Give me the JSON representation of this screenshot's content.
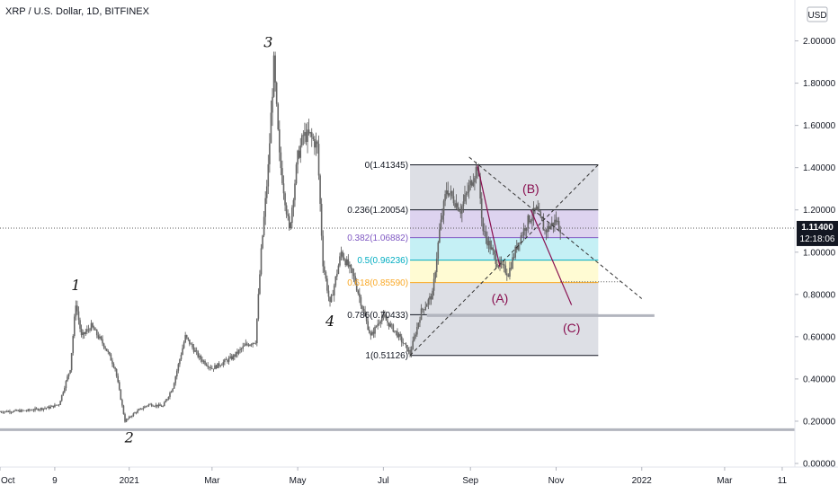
{
  "header": {
    "title": "XRP / U.S. Dollar, 1D, BITFINEX",
    "currency_button": "USD"
  },
  "price_tag": {
    "value": "1.11400",
    "countdown": "12:18:06"
  },
  "chart_data": {
    "type": "candlestick",
    "symbol": "XRP / U.S. Dollar",
    "interval": "1D",
    "exchange": "BITFINEX",
    "ylim": [
      0.0,
      2.1
    ],
    "y_ticks": [
      {
        "value": 0.0,
        "label": "0.00000"
      },
      {
        "value": 0.2,
        "label": "0.20000"
      },
      {
        "value": 0.4,
        "label": "0.40000"
      },
      {
        "value": 0.6,
        "label": "0.60000"
      },
      {
        "value": 0.8,
        "label": "0.80000"
      },
      {
        "value": 1.0,
        "label": "1.00000"
      },
      {
        "value": 1.2,
        "label": "1.20000"
      },
      {
        "value": 1.4,
        "label": "1.40000"
      },
      {
        "value": 1.6,
        "label": "1.60000"
      },
      {
        "value": 1.8,
        "label": "1.80000"
      },
      {
        "value": 2.0,
        "label": "2.00000"
      }
    ],
    "xlim": [
      "2020-10-01",
      "2022-04-20"
    ],
    "x_ticks": [
      {
        "date": "2020-10-01",
        "label": "Oct"
      },
      {
        "date": "2020-11-09",
        "label": "9"
      },
      {
        "date": "2021-01-01",
        "label": "2021"
      },
      {
        "date": "2021-03-01",
        "label": "Mar"
      },
      {
        "date": "2021-05-01",
        "label": "May"
      },
      {
        "date": "2021-07-01",
        "label": "Jul"
      },
      {
        "date": "2021-09-01",
        "label": "Sep"
      },
      {
        "date": "2021-11-01",
        "label": "Nov"
      },
      {
        "date": "2022-01-01",
        "label": "2022"
      },
      {
        "date": "2022-03-01",
        "label": "Mar"
      },
      {
        "date": "2022-04-11",
        "label": "11"
      }
    ],
    "current_price": 1.114,
    "support_lines": [
      {
        "price": 0.16,
        "from": "2020-10-01",
        "to": "2022-04-20"
      },
      {
        "price": 0.7,
        "from": "2021-08-01",
        "to": "2022-01-10"
      }
    ],
    "price_path": [
      [
        "2020-10-01",
        0.245
      ],
      [
        "2020-10-20",
        0.25
      ],
      [
        "2020-11-05",
        0.265
      ],
      [
        "2020-11-12",
        0.28
      ],
      [
        "2020-11-20",
        0.45
      ],
      [
        "2020-11-24",
        0.76
      ],
      [
        "2020-11-28",
        0.6
      ],
      [
        "2020-12-05",
        0.65
      ],
      [
        "2020-12-15",
        0.55
      ],
      [
        "2020-12-22",
        0.45
      ],
      [
        "2020-12-29",
        0.2
      ],
      [
        "2021-01-05",
        0.24
      ],
      [
        "2021-01-15",
        0.28
      ],
      [
        "2021-01-25",
        0.27
      ],
      [
        "2021-02-01",
        0.36
      ],
      [
        "2021-02-10",
        0.6
      ],
      [
        "2021-02-20",
        0.5
      ],
      [
        "2021-03-01",
        0.45
      ],
      [
        "2021-03-15",
        0.5
      ],
      [
        "2021-03-25",
        0.56
      ],
      [
        "2021-04-01",
        0.58
      ],
      [
        "2021-04-05",
        1.0
      ],
      [
        "2021-04-10",
        1.4
      ],
      [
        "2021-04-14",
        1.89
      ],
      [
        "2021-04-18",
        1.45
      ],
      [
        "2021-04-25",
        1.1
      ],
      [
        "2021-05-01",
        1.45
      ],
      [
        "2021-05-05",
        1.55
      ],
      [
        "2021-05-10",
        1.55
      ],
      [
        "2021-05-15",
        1.5
      ],
      [
        "2021-05-19",
        0.95
      ],
      [
        "2021-05-24",
        0.75
      ],
      [
        "2021-06-01",
        1.0
      ],
      [
        "2021-06-10",
        0.88
      ],
      [
        "2021-06-22",
        0.6
      ],
      [
        "2021-06-30",
        0.7
      ],
      [
        "2021-07-10",
        0.62
      ],
      [
        "2021-07-20",
        0.52
      ],
      [
        "2021-07-28",
        0.72
      ],
      [
        "2021-08-05",
        0.8
      ],
      [
        "2021-08-10",
        1.1
      ],
      [
        "2021-08-15",
        1.3
      ],
      [
        "2021-08-25",
        1.2
      ],
      [
        "2021-09-06",
        1.41
      ],
      [
        "2021-09-10",
        1.1
      ],
      [
        "2021-09-20",
        0.95
      ],
      [
        "2021-09-28",
        0.9
      ],
      [
        "2021-10-05",
        1.05
      ],
      [
        "2021-10-12",
        1.15
      ],
      [
        "2021-10-18",
        1.2
      ],
      [
        "2021-10-24",
        1.1
      ],
      [
        "2021-11-01",
        1.15
      ],
      [
        "2021-11-04",
        1.114
      ]
    ],
    "wave_labels": [
      {
        "text": "1",
        "date": "2020-11-24",
        "price": 0.82
      },
      {
        "text": "2",
        "date": "2021-01-01",
        "price": 0.1
      },
      {
        "text": "3",
        "date": "2021-04-10",
        "price": 1.97
      },
      {
        "text": "4",
        "date": "2021-05-24",
        "price": 0.65
      },
      {
        "text": "(A)",
        "date": "2021-09-22",
        "price": 0.76
      },
      {
        "text": "(B)",
        "date": "2021-10-14",
        "price": 1.28
      },
      {
        "text": "(C)",
        "date": "2021-11-12",
        "price": 0.62
      }
    ],
    "fibonacci_retracement": {
      "from_date": "2021-07-20",
      "to_date": "2021-12-01",
      "levels": [
        {
          "ratio": 0,
          "price": 1.41345,
          "label": "0(1.41345)",
          "color": "#131722",
          "zone_color": "#d1d4dc"
        },
        {
          "ratio": 0.236,
          "price": 1.20054,
          "label": "0.236(1.20054)",
          "color": "#131722",
          "zone_color": "#d1c4e9"
        },
        {
          "ratio": 0.382,
          "price": 1.06882,
          "label": "0.382(1.06882)",
          "color": "#7e57c2",
          "zone_color": "#b2ebf2"
        },
        {
          "ratio": 0.5,
          "price": 0.96236,
          "label": "0.5(0.96236)",
          "color": "#00acc1",
          "zone_color": "#fff9c4"
        },
        {
          "ratio": 0.618,
          "price": 0.8559,
          "label": "0.618(0.85590)",
          "color": "#f9a825",
          "zone_color": "#d1d4dc"
        },
        {
          "ratio": 0.786,
          "price": 0.70433,
          "label": "0.786(0.70433)",
          "color": "#131722",
          "zone_color": "#d1d4dc"
        },
        {
          "ratio": 1,
          "price": 0.51126,
          "label": "1(0.51126)",
          "color": "#131722",
          "zone_color": null
        }
      ]
    },
    "trendlines": [
      {
        "style": "dashed",
        "from": [
          "2021-07-20",
          0.51126
        ],
        "to": [
          "2021-12-01",
          1.41345
        ],
        "color": "#333333"
      },
      {
        "style": "dashed",
        "from": [
          "2021-08-31",
          1.45
        ],
        "to": [
          "2022-01-01",
          0.78
        ],
        "color": "#333333"
      },
      {
        "style": "dotted",
        "from": [
          "2021-11-04",
          0.86
        ],
        "to": [
          "2021-12-18",
          0.86
        ],
        "color": "#555555"
      }
    ],
    "projection_lines": [
      {
        "from": [
          "2021-09-06",
          1.41
        ],
        "to": [
          "2021-09-22",
          0.93
        ],
        "color": "#880e4f"
      },
      {
        "from": [
          "2021-10-14",
          1.2
        ],
        "to": [
          "2021-11-12",
          0.75
        ],
        "color": "#880e4f"
      }
    ]
  }
}
